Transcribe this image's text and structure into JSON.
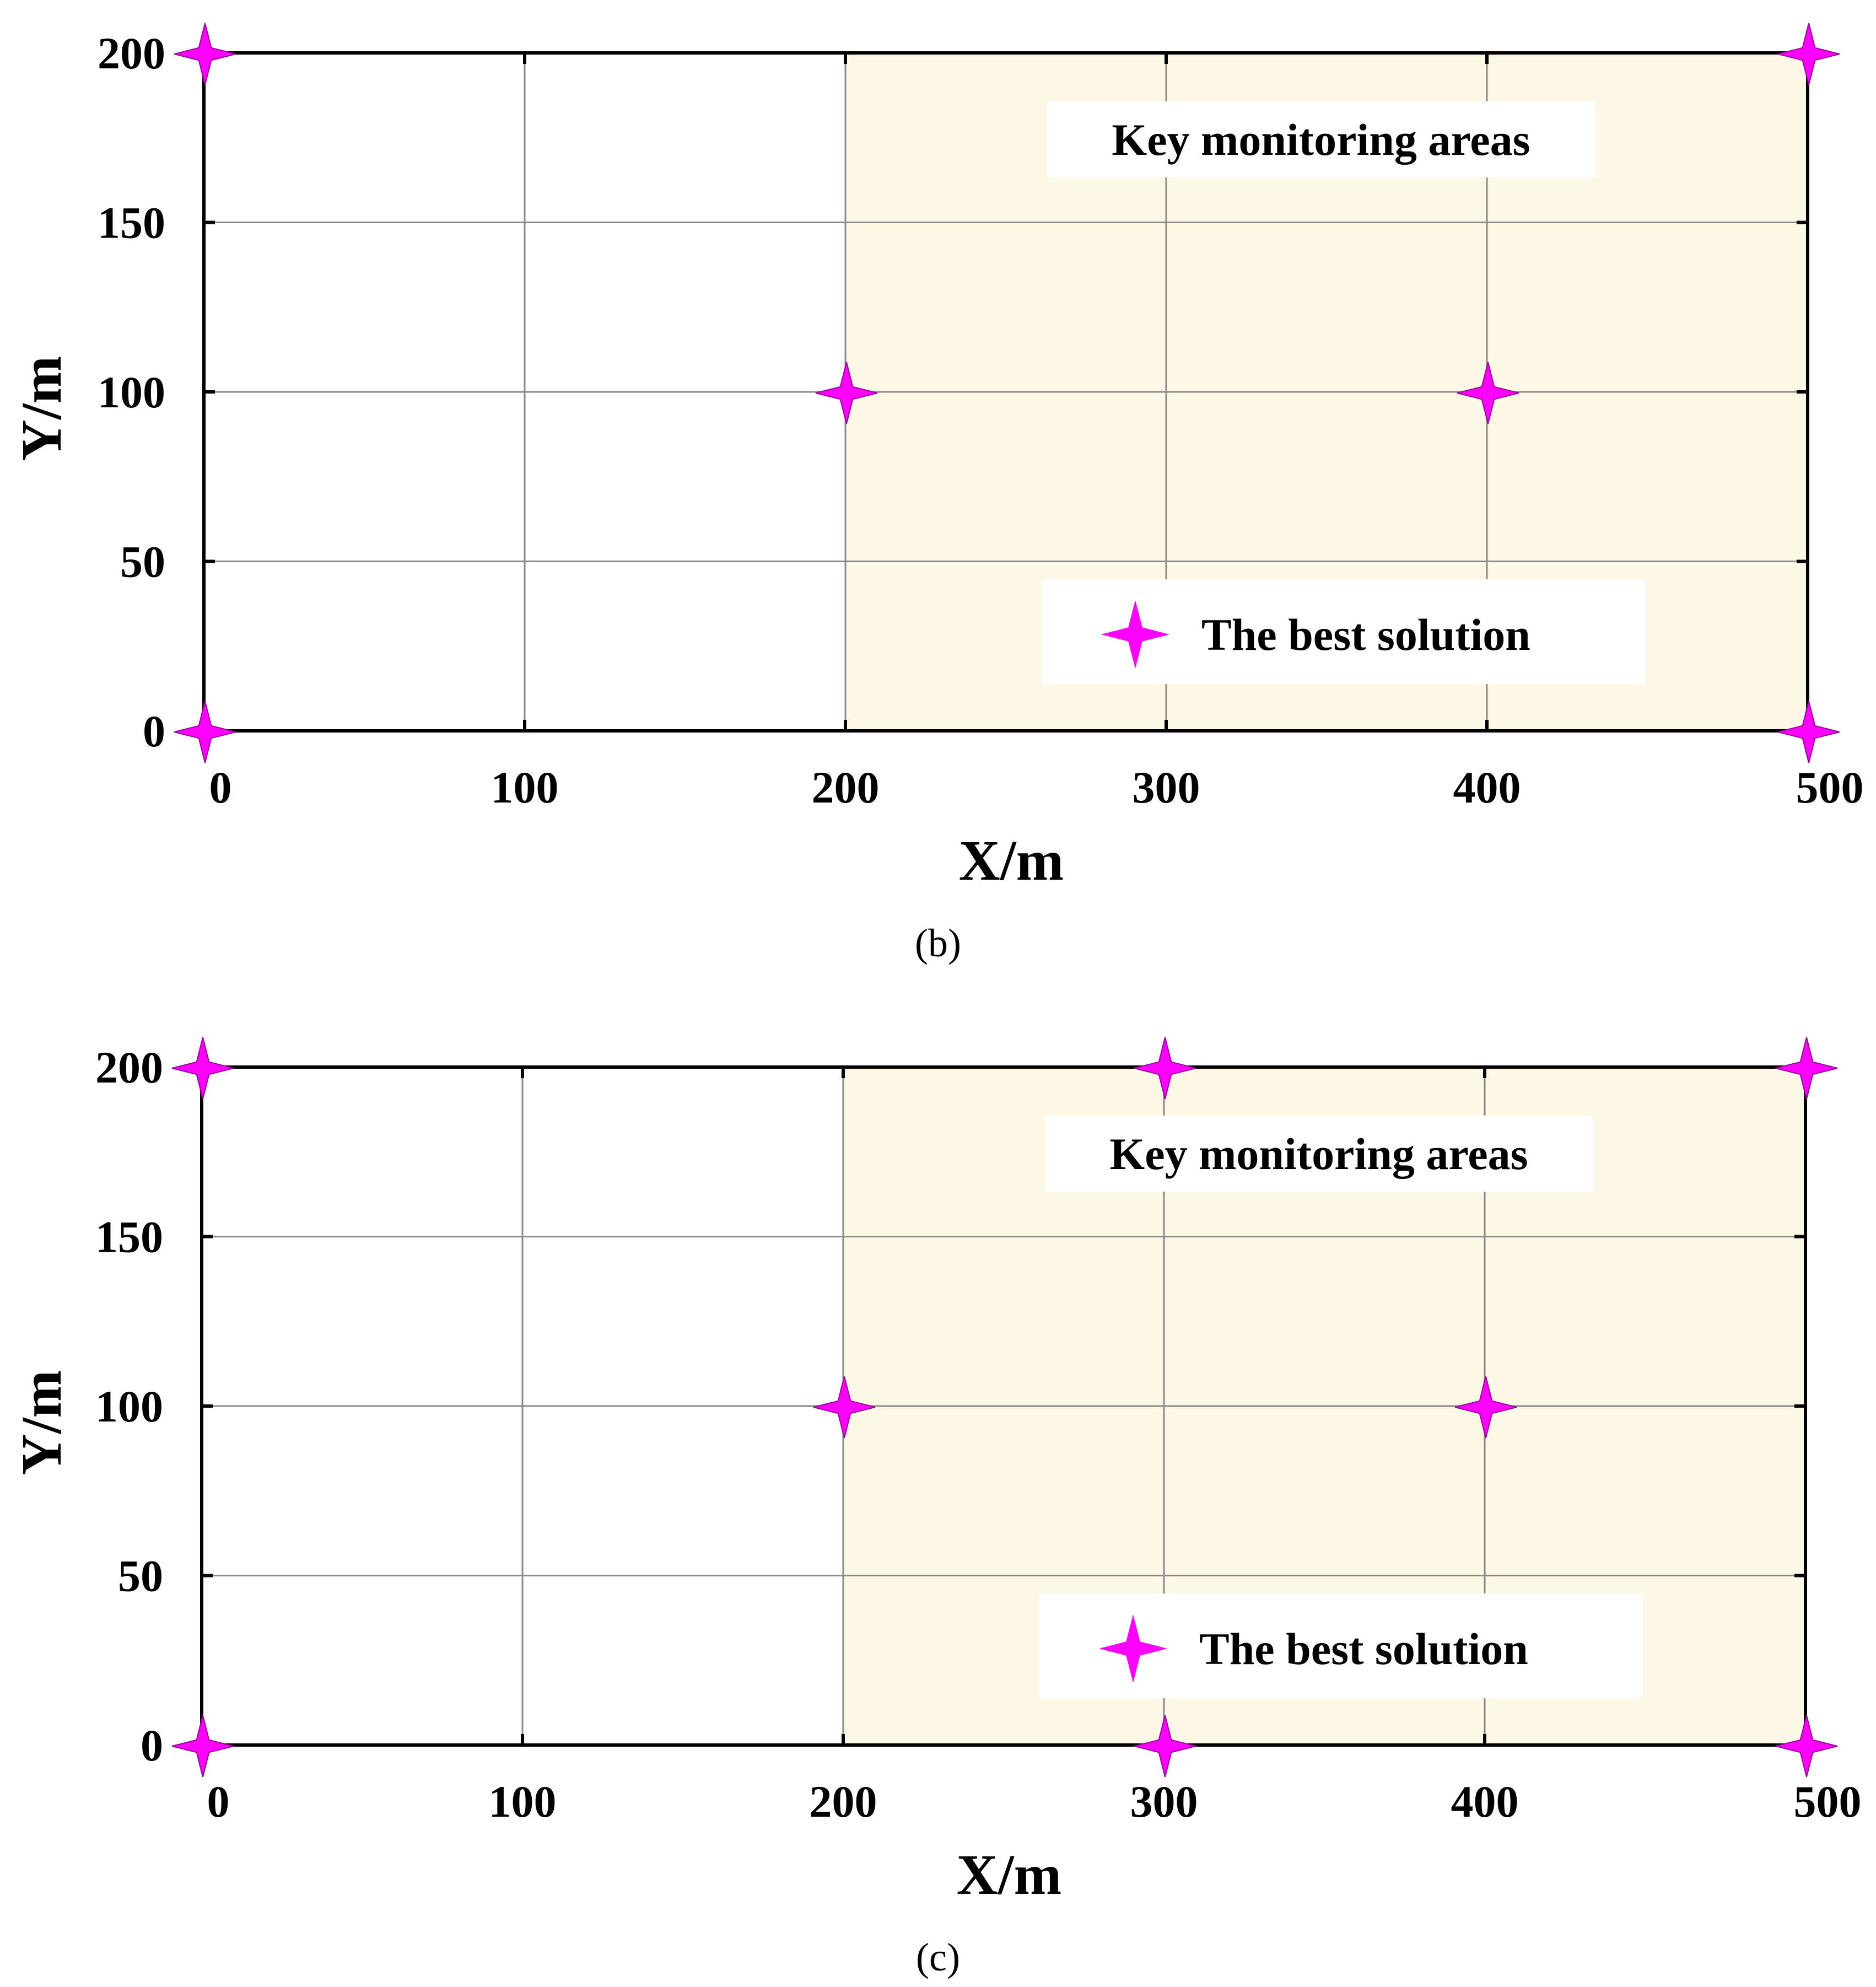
{
  "chart_data": [
    {
      "type": "scatter",
      "panel_label": "(b)",
      "xlabel": "X/m",
      "ylabel": "Y/m",
      "xlim": [
        0,
        500
      ],
      "ylim": [
        0,
        200
      ],
      "xticks": [
        "0",
        "100",
        "200",
        "300",
        "400",
        "500"
      ],
      "yticks": [
        "0",
        "50",
        "100",
        "150",
        "200"
      ],
      "grid": true,
      "shaded_region": {
        "label": "Key monitoring areas",
        "x": [
          200,
          500
        ],
        "y": [
          0,
          200
        ],
        "color": "#fdf7e6"
      },
      "series": [
        {
          "name": "The best solution",
          "marker": "four-point-star",
          "color": "#ff00ff",
          "points": [
            {
              "x": 0,
              "y": 200
            },
            {
              "x": 500,
              "y": 200
            },
            {
              "x": 200,
              "y": 100
            },
            {
              "x": 400,
              "y": 100
            },
            {
              "x": 0,
              "y": 0
            },
            {
              "x": 500,
              "y": 0
            }
          ]
        }
      ],
      "legend": "bottom-right"
    },
    {
      "type": "scatter",
      "panel_label": "(c)",
      "xlabel": "X/m",
      "ylabel": "Y/m",
      "xlim": [
        0,
        500
      ],
      "ylim": [
        0,
        200
      ],
      "xticks": [
        "0",
        "100",
        "200",
        "300",
        "400",
        "500"
      ],
      "yticks": [
        "0",
        "50",
        "100",
        "150",
        "200"
      ],
      "grid": true,
      "shaded_region": {
        "label": "Key monitoring areas",
        "x": [
          200,
          500
        ],
        "y": [
          0,
          200
        ],
        "color": "#fdf7e6"
      },
      "series": [
        {
          "name": "The best solution",
          "marker": "four-point-star",
          "color": "#ff00ff",
          "points": [
            {
              "x": 0,
              "y": 200
            },
            {
              "x": 300,
              "y": 200
            },
            {
              "x": 500,
              "y": 200
            },
            {
              "x": 200,
              "y": 100
            },
            {
              "x": 400,
              "y": 100
            },
            {
              "x": 0,
              "y": 0
            },
            {
              "x": 300,
              "y": 0
            },
            {
              "x": 500,
              "y": 0
            }
          ]
        }
      ],
      "legend": "bottom-right"
    }
  ]
}
